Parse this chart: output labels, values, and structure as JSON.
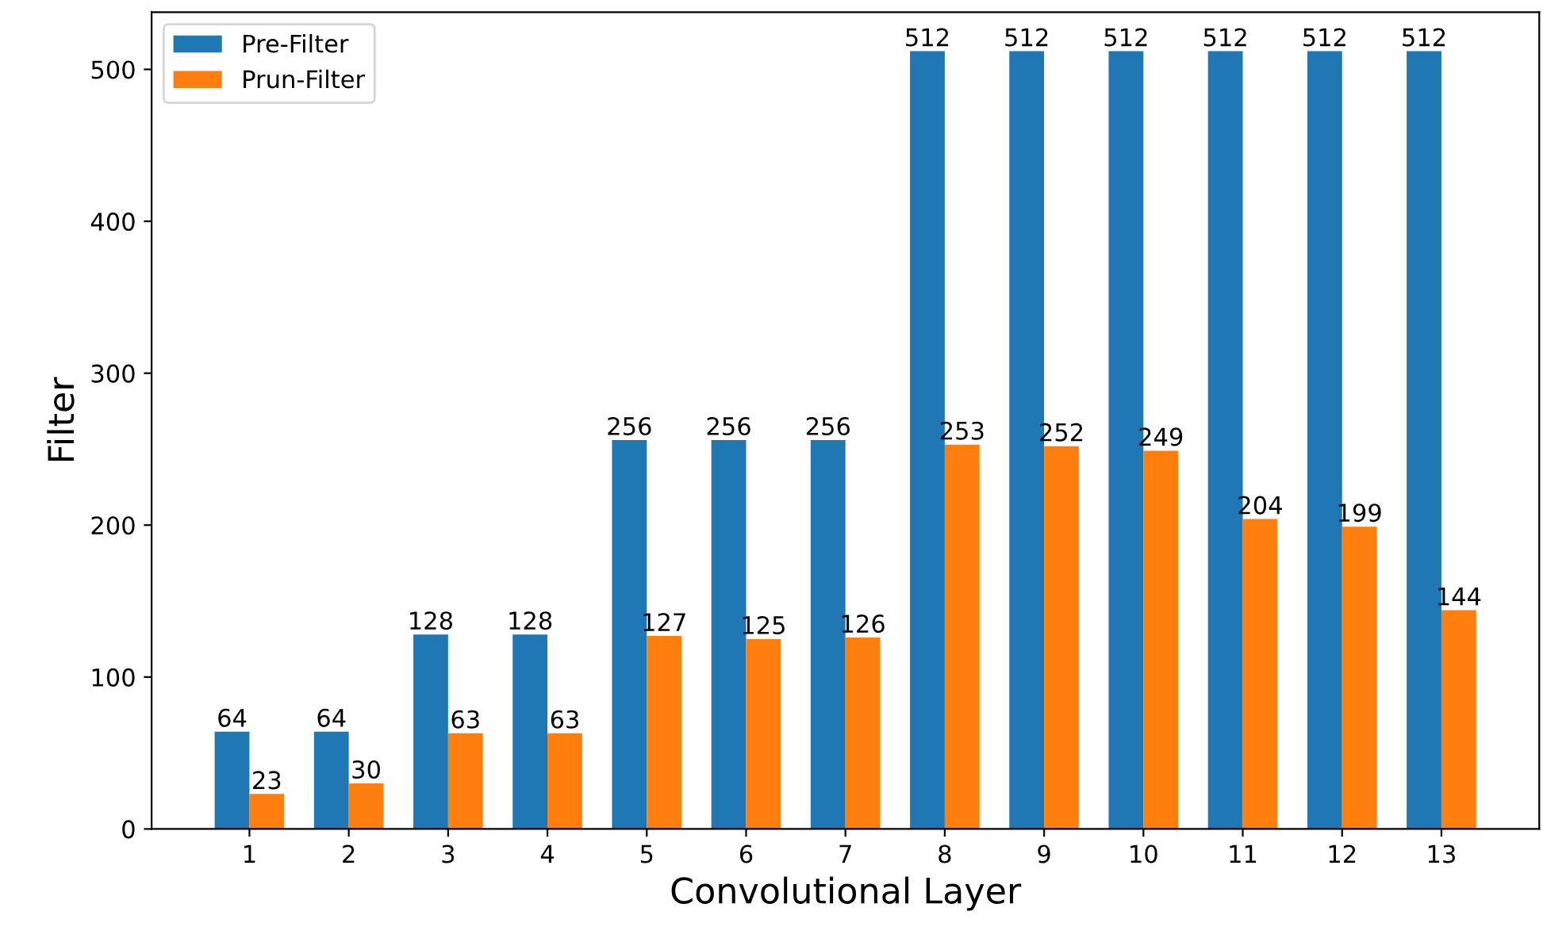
{
  "chart_data": {
    "type": "bar",
    "xlabel": "Convolutional Layer",
    "ylabel": "Filter",
    "categories": [
      "1",
      "2",
      "3",
      "4",
      "5",
      "6",
      "7",
      "8",
      "9",
      "10",
      "11",
      "12",
      "13"
    ],
    "series": [
      {
        "name": "Pre-Filter",
        "color": "#1f77b4",
        "values": [
          64,
          64,
          128,
          128,
          256,
          256,
          256,
          512,
          512,
          512,
          512,
          512,
          512
        ]
      },
      {
        "name": "Prun-Filter",
        "color": "#ff7f0e",
        "values": [
          23,
          30,
          63,
          63,
          127,
          125,
          126,
          253,
          252,
          249,
          204,
          199,
          144
        ]
      }
    ],
    "ylim": [
      0,
      537.6
    ],
    "yticks": [
      0,
      100,
      200,
      300,
      400,
      500
    ],
    "data_labels": true,
    "legend": "top left",
    "grid": false
  }
}
